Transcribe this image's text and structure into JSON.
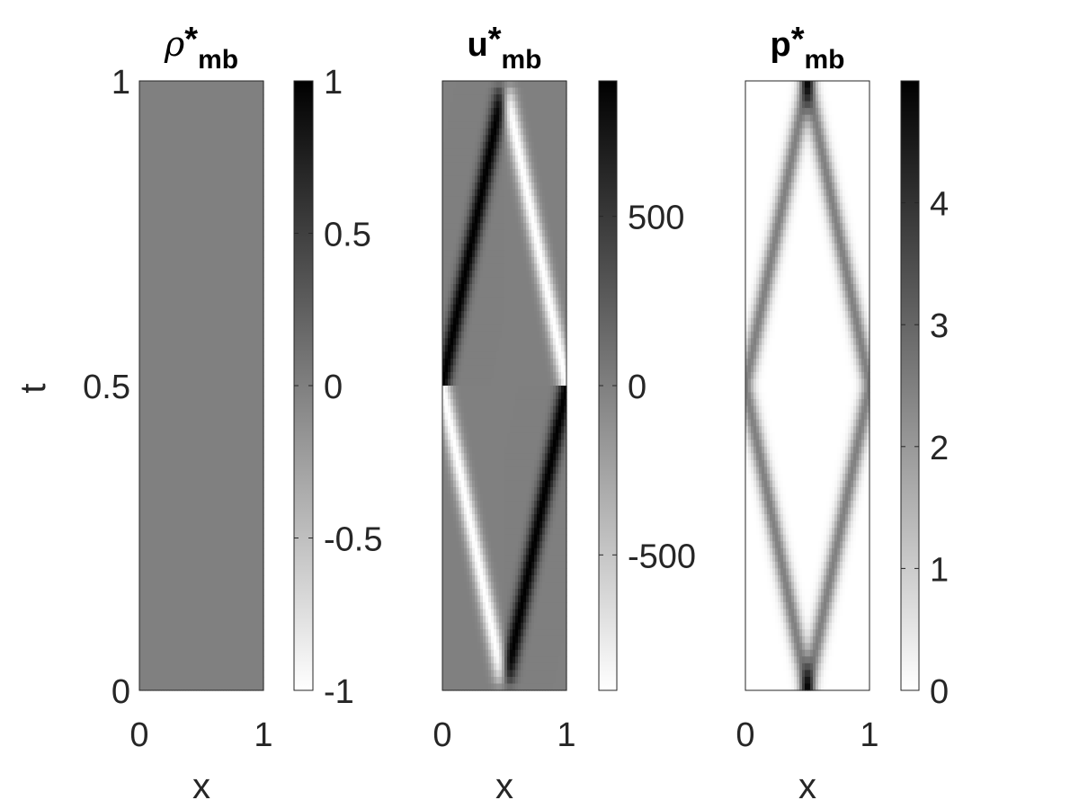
{
  "chart_data": [
    {
      "type": "heatmap",
      "title": {
        "symbol": "ρ",
        "star": "*",
        "sub": "mb"
      },
      "xlabel": "x",
      "ylabel": "t",
      "xlim": [
        0,
        1
      ],
      "ylim": [
        0,
        1
      ],
      "xticks": [
        "0",
        "1"
      ],
      "yticks": [
        "0",
        "0.5",
        "1"
      ],
      "colormap": "gray (white = min, black = max)",
      "clim": [
        -1,
        1
      ],
      "colorbar_ticks": [
        {
          "value": -1,
          "label": "-1"
        },
        {
          "value": -0.5,
          "label": "-0.5"
        },
        {
          "value": 0,
          "label": "0"
        },
        {
          "value": 0.5,
          "label": "0.5"
        },
        {
          "value": 1,
          "label": "1"
        }
      ],
      "field": {
        "kind": "constant",
        "value": 0
      }
    },
    {
      "type": "heatmap",
      "title": {
        "symbol": "u",
        "star": "*",
        "sub": "mb"
      },
      "xlabel": "x",
      "ylabel": "",
      "xlim": [
        0,
        1
      ],
      "ylim": [
        0,
        1
      ],
      "xticks": [
        "0",
        "1"
      ],
      "yticks": [],
      "colormap": "gray (white = min, black = max)",
      "clim": [
        -900,
        900
      ],
      "colorbar_ticks": [
        {
          "value": -500,
          "label": "-500"
        },
        {
          "value": 0,
          "label": "0"
        },
        {
          "value": 500,
          "label": "500"
        }
      ],
      "field": {
        "kind": "signed_characteristics",
        "center_x": 0.5,
        "speed": 1.0,
        "reflect_at": 0.5,
        "amplitude": 900,
        "width": 0.045
      }
    },
    {
      "type": "heatmap",
      "title": {
        "symbol": "p",
        "star": "*",
        "sub": "mb"
      },
      "xlabel": "x",
      "ylabel": "",
      "xlim": [
        0,
        1
      ],
      "ylim": [
        0,
        1
      ],
      "xticks": [
        "0",
        "1"
      ],
      "yticks": [],
      "colormap": "gray (white = min, black = max)",
      "clim": [
        0,
        5
      ],
      "colorbar_ticks": [
        {
          "value": 0,
          "label": "0"
        },
        {
          "value": 1,
          "label": "1"
        },
        {
          "value": 2,
          "label": "2"
        },
        {
          "value": 3,
          "label": "3"
        },
        {
          "value": 4,
          "label": "4"
        }
      ],
      "field": {
        "kind": "positive_characteristics",
        "center_x": 0.5,
        "speed": 1.0,
        "reflect_at": 0.5,
        "amplitude": 2.5,
        "width": 0.045
      }
    }
  ]
}
